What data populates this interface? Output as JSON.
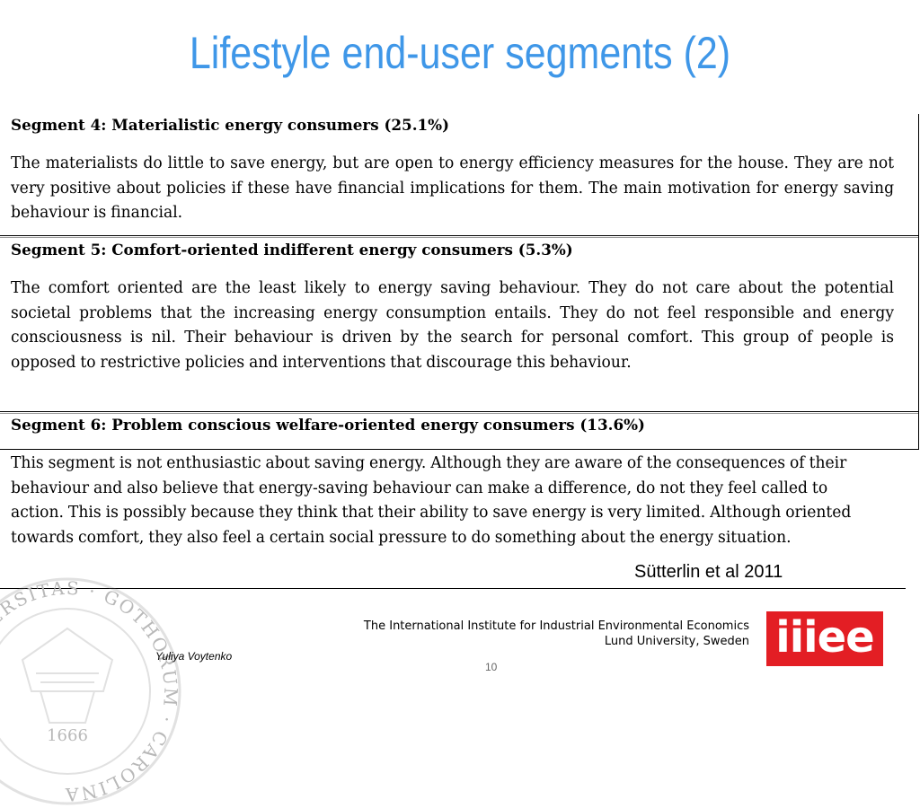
{
  "slide": {
    "title": "Lifestyle end-user segments (2)",
    "page_number": "10"
  },
  "segments": [
    {
      "title": "Segment 4: Materialistic energy consumers (25.1%)",
      "text": "The materialists do little to save energy, but are open to energy efficiency measures for the house. They are not very positive about policies if these have financial implications for them. The main motivation for energy saving behaviour is financial."
    },
    {
      "title": "Segment 5: Comfort-oriented indifferent energy consumers (5.3%)",
      "text": "The comfort oriented are the least likely to energy saving behaviour. They do not care about the potential societal problems that the increasing energy consumption entails. They do not feel responsible and energy consciousness is nil. Their behaviour is driven by the search for personal comfort. This group of people is opposed to restrictive policies and interventions that discourage this behaviour."
    },
    {
      "title": "Segment 6: Problem conscious welfare-oriented energy consumers (13.6%)",
      "text": "This segment is not enthusiastic about saving energy. Although they are aware of the consequences of their behaviour and also believe that energy-saving behaviour can make a difference, do not they feel called to action. This is possibly because they think that their ability to save energy is very limited. Although oriented towards comfort, they also feel a certain social pressure to do something about the energy situation."
    }
  ],
  "citation": "Sütterlin et al 2011",
  "footer": {
    "author": "Yuliya Voytenko",
    "institute_line1": "The International Institute for Industrial Environmental Economics",
    "institute_line2": "Lund University, Sweden",
    "logo_text": "iiiee",
    "seal_year": "1666",
    "seal_text": "UNIVERSITAS · GOTHORUM · CAROLINA",
    "logo_color": "#e31e24",
    "title_color": "#3f97e8"
  }
}
